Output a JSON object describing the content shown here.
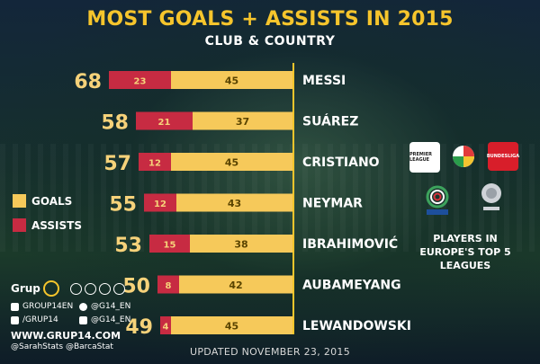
{
  "header": {
    "title": "MOST GOALS + ASSISTS IN 2015",
    "subtitle": "CLUB & COUNTRY"
  },
  "legend": {
    "goals_label": "GOALS",
    "assists_label": "ASSISTS"
  },
  "colors": {
    "goals": "#f6c95a",
    "assists": "#c72b42",
    "title": "#f6c52c"
  },
  "chart_data": {
    "type": "bar",
    "orientation": "horizontal",
    "stacked": true,
    "categories": [
      "MESSI",
      "SUÁREZ",
      "CRISTIANO",
      "NEYMAR",
      "IBRAHIMOVIĆ",
      "AUBAMEYANG",
      "LEWANDOWSKI"
    ],
    "totals": [
      68,
      58,
      57,
      55,
      53,
      50,
      49
    ],
    "series": [
      {
        "name": "ASSISTS",
        "values": [
          23,
          21,
          12,
          12,
          15,
          8,
          4
        ]
      },
      {
        "name": "GOALS",
        "values": [
          45,
          37,
          45,
          43,
          38,
          42,
          45
        ]
      }
    ],
    "title": "MOST GOALS + ASSISTS IN 2015",
    "subtitle": "CLUB & COUNTRY",
    "xlabel": "",
    "ylabel": "",
    "grid": false,
    "legend_position": "left"
  },
  "leagues": {
    "badges": [
      "PREMIER LEAGUE",
      "LFP",
      "BUNDESLIGA",
      "SERIE A",
      "LIGUE 1"
    ],
    "note": "PLAYERS IN EUROPE'S TOP 5 LEAGUES"
  },
  "branding": {
    "name": "Grup",
    "facebook": "GROUP14EN",
    "twitter_1": "@G14_EN",
    "tumblr": "/GRUP14",
    "instagram": "@G14_EN",
    "website": "WWW.GRUP14.COM",
    "handles": "@SarahStats @BarcaStat"
  },
  "footer": {
    "updated": "UPDATED NOVEMBER 23, 2015"
  }
}
